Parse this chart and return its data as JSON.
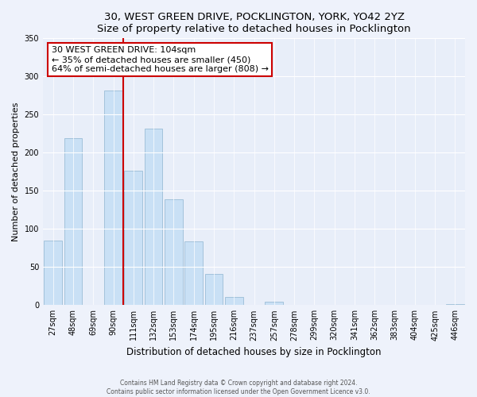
{
  "title": "30, WEST GREEN DRIVE, POCKLINGTON, YORK, YO42 2YZ",
  "subtitle": "Size of property relative to detached houses in Pocklington",
  "xlabel": "Distribution of detached houses by size in Pocklington",
  "ylabel": "Number of detached properties",
  "bar_labels": [
    "27sqm",
    "48sqm",
    "69sqm",
    "90sqm",
    "111sqm",
    "132sqm",
    "153sqm",
    "174sqm",
    "195sqm",
    "216sqm",
    "237sqm",
    "257sqm",
    "278sqm",
    "299sqm",
    "320sqm",
    "341sqm",
    "362sqm",
    "383sqm",
    "404sqm",
    "425sqm",
    "446sqm"
  ],
  "bar_values": [
    85,
    219,
    0,
    282,
    176,
    232,
    139,
    84,
    41,
    11,
    0,
    4,
    0,
    0,
    0,
    0,
    0,
    0,
    0,
    0,
    1
  ],
  "bar_color": "#c9e0f5",
  "bar_edge_color": "#9bbdd6",
  "vline_color": "#cc0000",
  "vline_x_index": 3.5,
  "annotation_title": "30 WEST GREEN DRIVE: 104sqm",
  "annotation_line1": "← 35% of detached houses are smaller (450)",
  "annotation_line2": "64% of semi-detached houses are larger (808) →",
  "annotation_box_color": "#ffffff",
  "annotation_box_edge": "#cc0000",
  "ylim": [
    0,
    350
  ],
  "yticks": [
    0,
    50,
    100,
    150,
    200,
    250,
    300,
    350
  ],
  "footer1": "Contains HM Land Registry data © Crown copyright and database right 2024.",
  "footer2": "Contains public sector information licensed under the Open Government Licence v3.0.",
  "background_color": "#eef2fb",
  "plot_background": "#e8eef9"
}
